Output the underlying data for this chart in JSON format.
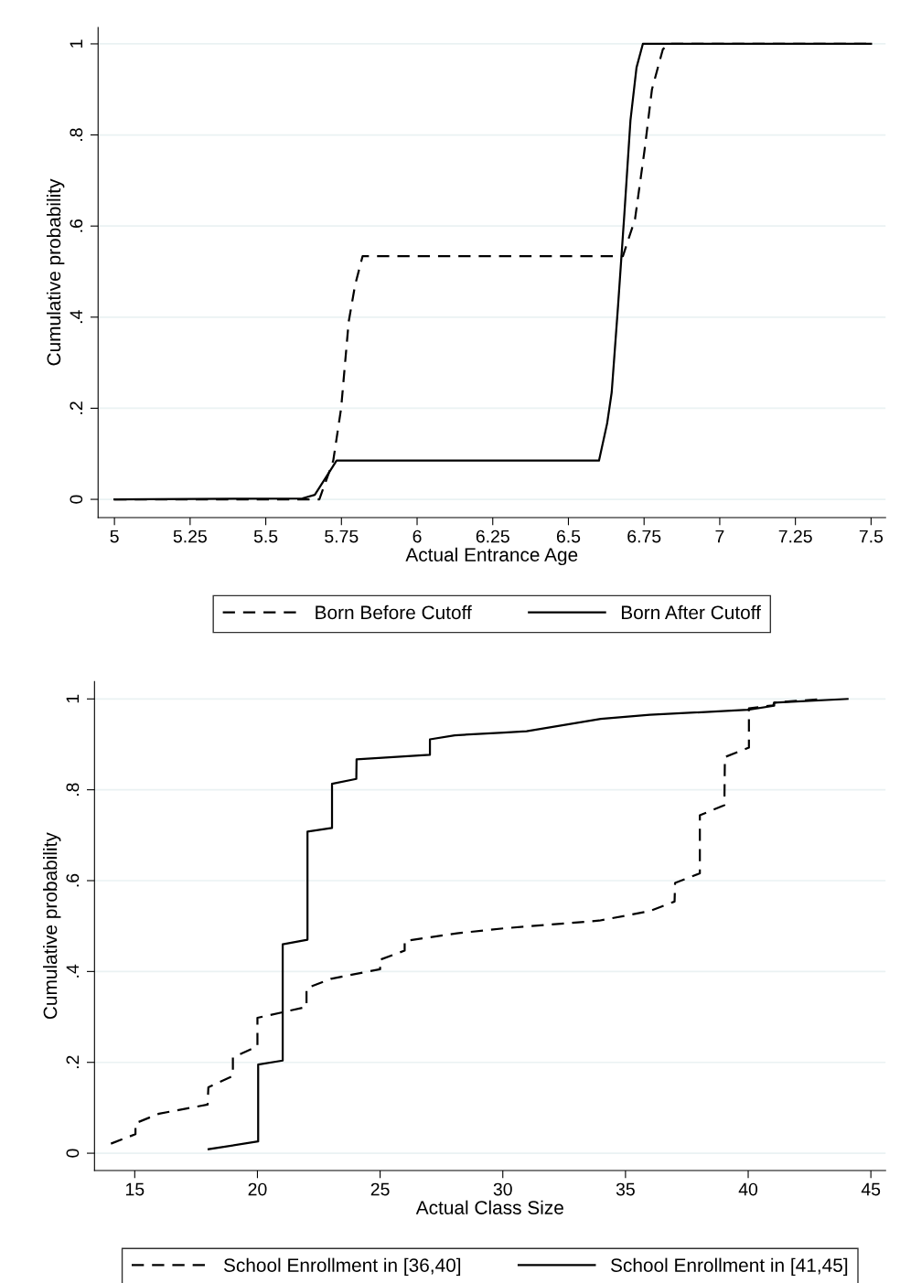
{
  "chart_data": [
    {
      "type": "line",
      "xlabel": "Actual Entrance Age",
      "ylabel": "Cumulative probability",
      "xlim": [
        4.946,
        7.548
      ],
      "ylim": [
        -0.04,
        1.036
      ],
      "xticks": [
        5,
        5.25,
        5.5,
        5.75,
        6,
        6.25,
        6.5,
        6.75,
        7,
        7.25,
        7.5
      ],
      "yticks": [
        {
          "value": 0,
          "label": "0"
        },
        {
          "value": 0.2,
          "label": ".2"
        },
        {
          "value": 0.4,
          "label": ".4"
        },
        {
          "value": 0.6,
          "label": ".6"
        },
        {
          "value": 0.8,
          "label": ".8"
        },
        {
          "value": 1,
          "label": "1"
        }
      ],
      "grid": "y",
      "legend": "bottom",
      "series": [
        {
          "name": "Born Before Cutoff",
          "color": "#000000",
          "line_style": "dashed",
          "x": [
            5,
            5.677,
            5.723,
            5.749,
            5.774,
            5.795,
            5.82,
            6.68,
            6.72,
            6.751,
            6.776,
            6.812,
            6.833,
            7.5
          ],
          "values": [
            0,
            0,
            0.085,
            0.2,
            0.39,
            0.47,
            0.534,
            0.534,
            0.615,
            0.764,
            0.9,
            0.988,
            1,
            1
          ]
        },
        {
          "name": "Born After Cutoff",
          "color": "#000000",
          "line_style": "solid",
          "x": [
            5,
            5.621,
            5.662,
            5.734,
            5.75,
            6.601,
            6.628,
            6.643,
            6.664,
            6.685,
            6.705,
            6.725,
            6.746,
            7.5
          ],
          "values": [
            0,
            0.002,
            0.01,
            0.085,
            0.085,
            0.085,
            0.167,
            0.235,
            0.425,
            0.628,
            0.832,
            0.948,
            1,
            1
          ]
        }
      ]
    },
    {
      "type": "line",
      "xlabel": "Actual Class Size",
      "ylabel": "Cumulative probability",
      "xlim": [
        13.36,
        45.6
      ],
      "ylim": [
        -0.038,
        1.038
      ],
      "xticks": [
        15,
        20,
        25,
        30,
        35,
        40,
        45
      ],
      "yticks": [
        {
          "value": 0,
          "label": "0"
        },
        {
          "value": 0.2,
          "label": ".2"
        },
        {
          "value": 0.4,
          "label": ".4"
        },
        {
          "value": 0.6,
          "label": ".6"
        },
        {
          "value": 0.8,
          "label": ".8"
        },
        {
          "value": 1,
          "label": "1"
        }
      ],
      "grid": "y",
      "legend": "bottom",
      "series": [
        {
          "name": "School Enrollment in [36,40]",
          "color": "#000000",
          "line_style": "dashed",
          "x": [
            14.03,
            15.03,
            15.03,
            15.99,
            17.97,
            18.0,
            19.0,
            19.0,
            20.0,
            20.0,
            22.0,
            22.0,
            23.0,
            25.0,
            25.0,
            26.0,
            26.0,
            28.13,
            30.04,
            33.93,
            35.99,
            37.0,
            37.02,
            38.03,
            38.03,
            39.03,
            39.05,
            40.03,
            40.03,
            41.02,
            41.06,
            42.82
          ],
          "values": [
            0.021,
            0.042,
            0.066,
            0.087,
            0.107,
            0.145,
            0.17,
            0.211,
            0.235,
            0.298,
            0.322,
            0.363,
            0.384,
            0.405,
            0.426,
            0.446,
            0.467,
            0.484,
            0.495,
            0.512,
            0.533,
            0.554,
            0.595,
            0.616,
            0.744,
            0.766,
            0.872,
            0.893,
            0.979,
            0.986,
            0.992,
            0.999
          ]
        },
        {
          "name": "School Enrollment in [41,45]",
          "color": "#000000",
          "line_style": "solid",
          "x": [
            18.01,
            20.03,
            20.03,
            21.03,
            21.03,
            22.04,
            22.04,
            23.04,
            23.04,
            24.03,
            24.04,
            27.03,
            27.03,
            28.04,
            30.04,
            30.97,
            33.99,
            35.99,
            39.99,
            41.06,
            41.06,
            44.05
          ],
          "values": [
            0.009,
            0.026,
            0.195,
            0.204,
            0.46,
            0.47,
            0.708,
            0.716,
            0.813,
            0.824,
            0.867,
            0.877,
            0.911,
            0.92,
            0.926,
            0.929,
            0.956,
            0.965,
            0.976,
            0.985,
            0.992,
            1.0
          ]
        }
      ]
    }
  ]
}
